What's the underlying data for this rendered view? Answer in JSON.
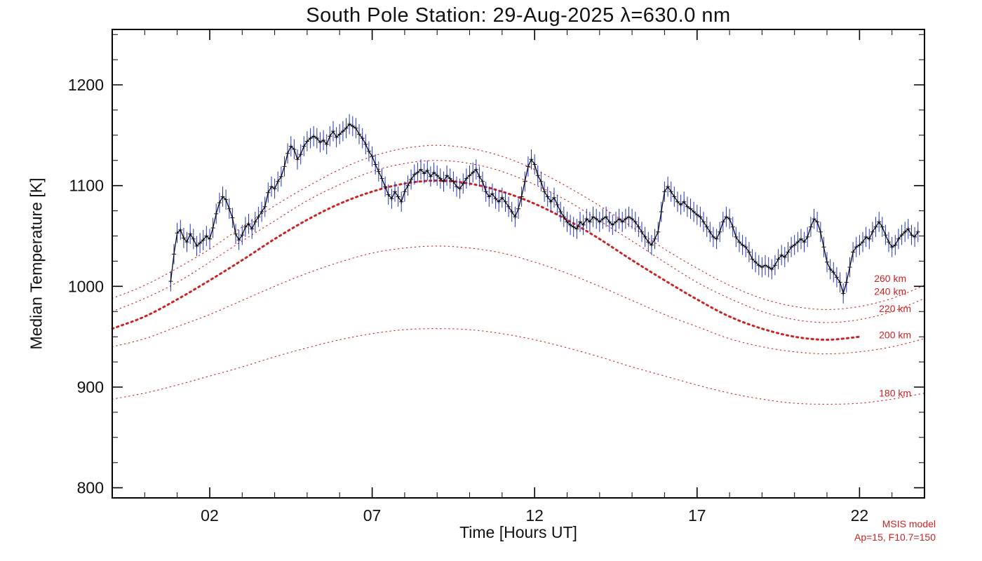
{
  "chart_data": {
    "type": "line",
    "title": "South Pole Station: 29-Aug-2025 λ=630.0 nm",
    "xlabel": "Time [Hours UT]",
    "ylabel": "Median Temperature [K]",
    "xlim": [
      -1,
      24
    ],
    "ylim": [
      790,
      1255
    ],
    "x_major_ticks": [
      2,
      7,
      12,
      17,
      22
    ],
    "x_tick_labels": [
      "02",
      "07",
      "12",
      "17",
      "22"
    ],
    "x_minor_step": 1,
    "y_major_ticks": [
      800,
      900,
      1000,
      1100,
      1200
    ],
    "y_minor_step": 25,
    "grid": false,
    "legend_position": "none",
    "colors": {
      "data_line": "#0b0b14",
      "error_bar": "#2233bb",
      "model": "#cc2222"
    },
    "annotation": {
      "line1": "MSIS model",
      "line2": "Ap=15, F10.7=150"
    },
    "measured_series": {
      "name": "Median temperature (630.0 nm)",
      "marker": "plus",
      "error_k": 10,
      "x_start": 0.8,
      "x_step": 0.1,
      "y": [
        1005,
        1032,
        1053,
        1056,
        1048,
        1044,
        1052,
        1047,
        1040,
        1043,
        1046,
        1050,
        1047,
        1058,
        1072,
        1083,
        1089,
        1086,
        1077,
        1068,
        1052,
        1046,
        1051,
        1059,
        1062,
        1057,
        1064,
        1069,
        1074,
        1079,
        1093,
        1099,
        1097,
        1104,
        1109,
        1119,
        1132,
        1139,
        1136,
        1126,
        1131,
        1139,
        1144,
        1147,
        1149,
        1147,
        1143,
        1145,
        1141,
        1149,
        1154,
        1148,
        1151,
        1154,
        1157,
        1161,
        1159,
        1157,
        1151,
        1147,
        1141,
        1134,
        1129,
        1121,
        1114,
        1107,
        1099,
        1091,
        1087,
        1094,
        1089,
        1084,
        1094,
        1100,
        1106,
        1111,
        1113,
        1116,
        1112,
        1115,
        1109,
        1113,
        1110,
        1107,
        1104,
        1110,
        1107,
        1104,
        1099,
        1097,
        1102,
        1107,
        1110,
        1113,
        1116,
        1109,
        1104,
        1094,
        1089,
        1092,
        1087,
        1084,
        1088,
        1084,
        1079,
        1074,
        1069,
        1077,
        1089,
        1104,
        1119,
        1126,
        1121,
        1110,
        1104,
        1094,
        1089,
        1084,
        1088,
        1081,
        1074,
        1069,
        1064,
        1061,
        1059,
        1057,
        1064,
        1061,
        1067,
        1064,
        1069,
        1067,
        1064,
        1067,
        1069,
        1064,
        1061,
        1064,
        1067,
        1064,
        1067,
        1069,
        1067,
        1064,
        1059,
        1054,
        1049,
        1044,
        1041,
        1047,
        1054,
        1074,
        1094,
        1099,
        1094,
        1089,
        1084,
        1081,
        1084,
        1079,
        1077,
        1074,
        1071,
        1069,
        1064,
        1059,
        1054,
        1049,
        1047,
        1054,
        1064,
        1069,
        1067,
        1059,
        1049,
        1044,
        1041,
        1039,
        1034,
        1027,
        1024,
        1021,
        1019,
        1021,
        1019,
        1017,
        1021,
        1027,
        1031,
        1029,
        1034,
        1039,
        1041,
        1044,
        1047,
        1044,
        1049,
        1059,
        1067,
        1064,
        1054,
        1039,
        1024,
        1017,
        1014,
        1009,
        1004,
        993,
        1004,
        1019,
        1034,
        1039,
        1041,
        1044,
        1049,
        1047,
        1054,
        1059,
        1064,
        1059,
        1051,
        1044,
        1039,
        1041,
        1047,
        1051,
        1054,
        1057,
        1051,
        1049,
        1054
      ]
    },
    "model_series": {
      "x": [
        -1,
        0,
        1,
        2,
        3,
        4,
        5,
        6,
        7,
        8,
        9,
        10,
        11,
        12,
        13,
        14,
        15,
        16,
        17,
        18,
        19,
        20,
        21,
        22,
        23,
        24
      ],
      "curves": [
        {
          "name": "260 km",
          "thick": false,
          "end_hour": 24,
          "label": {
            "x": 22.45,
            "y": 1008
          },
          "y": [
            988,
            1001,
            1018,
            1037,
            1059,
            1080,
            1099,
            1116,
            1129,
            1137,
            1140,
            1137,
            1129,
            1116,
            1099,
            1080,
            1059,
            1037,
            1018,
            1001,
            988,
            980,
            977,
            980,
            988,
            1001
          ]
        },
        {
          "name": "240 km",
          "thick": false,
          "end_hour": 24,
          "label": {
            "x": 22.45,
            "y": 995
          },
          "y": [
            975,
            988,
            1004,
            1024,
            1045,
            1065,
            1085,
            1101,
            1114,
            1122,
            1125,
            1122,
            1114,
            1101,
            1085,
            1065,
            1045,
            1024,
            1004,
            988,
            975,
            967,
            964,
            967,
            975,
            988
          ]
        },
        {
          "name": "220 km",
          "thick": true,
          "end_hour": 22,
          "label": {
            "x": 22.6,
            "y": 978
          },
          "y": [
            958,
            970,
            987,
            1006,
            1026,
            1047,
            1066,
            1082,
            1094,
            1102,
            1105,
            1102,
            1094,
            1082,
            1066,
            1047,
            1026,
            1006,
            987,
            970,
            958,
            950,
            947,
            950,
            958,
            970
          ]
        },
        {
          "name": "200 km",
          "thick": false,
          "end_hour": 24,
          "label": {
            "x": 22.6,
            "y": 952
          },
          "y": [
            940,
            948,
            960,
            972,
            986,
            1000,
            1013,
            1024,
            1033,
            1038,
            1040,
            1038,
            1033,
            1024,
            1013,
            1000,
            986,
            972,
            960,
            948,
            940,
            935,
            933,
            935,
            940,
            948
          ]
        },
        {
          "name": "180 km",
          "thick": false,
          "end_hour": 24,
          "label": {
            "x": 22.6,
            "y": 894
          },
          "y": [
            888,
            894,
            902,
            911,
            920,
            930,
            939,
            947,
            953,
            957,
            958,
            957,
            953,
            947,
            939,
            930,
            920,
            911,
            902,
            894,
            888,
            884,
            883,
            884,
            888,
            894
          ]
        }
      ]
    }
  }
}
